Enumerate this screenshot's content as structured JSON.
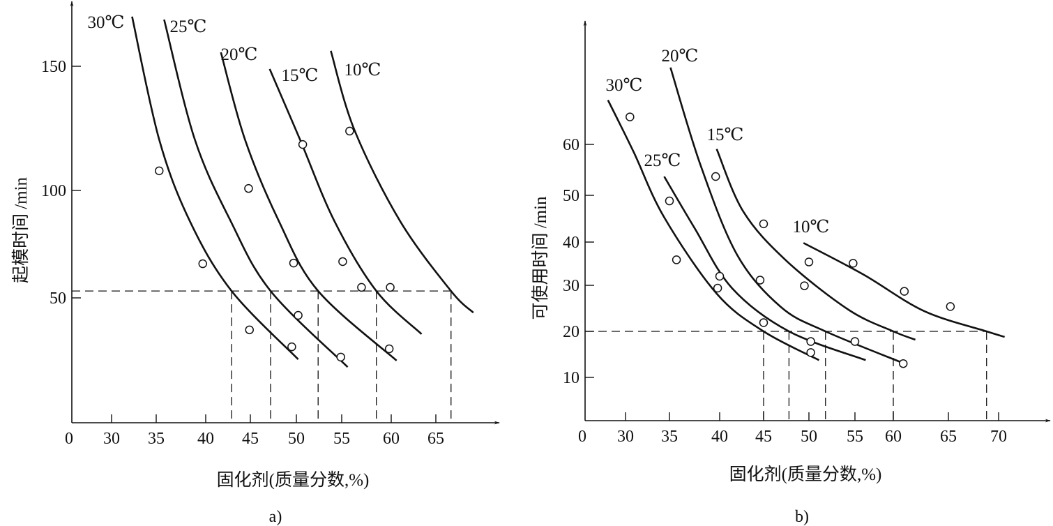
{
  "chart_data": [
    {
      "type": "line",
      "caption": "a)",
      "title": "",
      "xlabel": "固化剂(质量分数,%)",
      "ylabel": "起模时间 /min",
      "x_ticks": [
        "0",
        "30",
        "35",
        "40",
        "45",
        "50",
        "55",
        "60",
        "65"
      ],
      "y_ticks": [
        "50",
        "100",
        "150"
      ],
      "grid": false,
      "series": [
        {
          "name": "30℃",
          "points": [
            [
              32.3,
              170
            ],
            [
              35.3,
              120.5
            ],
            [
              38.4,
              85.7
            ],
            [
              42.9,
              53.2
            ],
            [
              50.2,
              25.4
            ]
          ]
        },
        {
          "name": "25℃",
          "points": [
            [
              35.8,
              168.8
            ],
            [
              38.9,
              120.5
            ],
            [
              42.8,
              85.7
            ],
            [
              47.2,
              53.2
            ],
            [
              55.6,
              22.3
            ]
          ]
        },
        {
          "name": "20℃",
          "points": [
            [
              41.7,
              155.6
            ],
            [
              44.4,
              120.5
            ],
            [
              48.1,
              85.7
            ],
            [
              52.4,
              53.2
            ],
            [
              60.6,
              24.9
            ]
          ]
        },
        {
          "name": "15℃",
          "points": [
            [
              47.1,
              148.9
            ],
            [
              50.4,
              120.5
            ],
            [
              54.2,
              85.7
            ],
            [
              58.5,
              53.2
            ],
            [
              63.4,
              35.5
            ]
          ]
        },
        {
          "name": "10℃",
          "points": [
            [
              53.8,
              156.2
            ],
            [
              56.3,
              124.2
            ],
            [
              61.0,
              85.7
            ],
            [
              66.7,
              53.2
            ],
            [
              69.2,
              44.1
            ]
          ]
        }
      ],
      "scatter": [
        [
          35.3,
          107.9
        ],
        [
          39.7,
          65.9
        ],
        [
          44.8,
          100.8
        ],
        [
          44.9,
          37.2
        ],
        [
          49.7,
          66.2
        ],
        [
          50.2,
          43
        ],
        [
          49.5,
          30.4
        ],
        [
          50.7,
          118.5
        ],
        [
          54.9,
          26.3
        ],
        [
          55.1,
          66.9
        ],
        [
          55.8,
          123.9
        ],
        [
          57.0,
          54.9
        ],
        [
          59.9,
          54.9
        ],
        [
          59.8,
          29.6
        ]
      ],
      "reference": {
        "y": 53.2,
        "x": [
          42.9,
          47.2,
          52.4,
          58.5,
          66.7
        ]
      }
    },
    {
      "type": "line",
      "caption": "b)",
      "title": "",
      "xlabel": "固化剂(质量分数,%)",
      "ylabel": "可使用时间 /min",
      "x_ticks": [
        "0",
        "30",
        "35",
        "40",
        "45",
        "50",
        "55",
        "60",
        "65",
        "70"
      ],
      "y_ticks": [
        "10",
        "20",
        "30",
        "40",
        "50",
        "60"
      ],
      "grid": false,
      "series": [
        {
          "name": "30℃",
          "points": [
            [
              28.0,
              68.7
            ],
            [
              30.9,
              58.6
            ],
            [
              34.4,
              45.3
            ],
            [
              39.7,
              28.2
            ],
            [
              45.0,
              20
            ],
            [
              51.1,
              13.75
            ]
          ]
        },
        {
          "name": "25℃",
          "points": [
            [
              34.4,
              53.7
            ],
            [
              37.5,
              43
            ],
            [
              41.4,
              29.4
            ],
            [
              47.8,
              20
            ],
            [
              56.4,
              13.75
            ]
          ]
        },
        {
          "name": "20℃",
          "points": [
            [
              35.1,
              75.1
            ],
            [
              38.1,
              55.9
            ],
            [
              42.0,
              37.0
            ],
            [
              46.9,
              25.3
            ],
            [
              51.8,
              20
            ],
            [
              60.8,
              13.2
            ]
          ]
        },
        {
          "name": "15℃",
          "points": [
            [
              39.7,
              59.1
            ],
            [
              42.7,
              46.5
            ],
            [
              47.5,
              35.7
            ],
            [
              54.3,
              24.7
            ],
            [
              60.0,
              20
            ],
            [
              62.0,
              18.2
            ]
          ]
        },
        {
          "name": "10℃",
          "points": [
            [
              49.4,
              39.8
            ],
            [
              56.1,
              32.5
            ],
            [
              62.8,
              24.4
            ],
            [
              68.8,
              20
            ],
            [
              70.6,
              18.8
            ]
          ]
        }
      ],
      "scatter": [
        [
          30.5,
          65.4
        ],
        [
          35.0,
          48.8
        ],
        [
          35.7,
          35.9
        ],
        [
          39.6,
          53.7
        ],
        [
          40.0,
          32.1
        ],
        [
          39.8,
          29.4
        ],
        [
          45.0,
          43.9
        ],
        [
          44.6,
          31.2
        ],
        [
          45.0,
          21.9
        ],
        [
          50.0,
          35.4
        ],
        [
          49.5,
          29.9
        ],
        [
          50.2,
          17.8
        ],
        [
          50.2,
          15.4
        ],
        [
          54.8,
          35.1
        ],
        [
          55.0,
          17.8
        ],
        [
          60.9,
          13.0
        ],
        [
          61.0,
          28.7
        ],
        [
          65.2,
          25.4
        ]
      ],
      "reference": {
        "y": 20,
        "x": [
          45.0,
          47.8,
          51.8,
          60.0,
          68.8
        ]
      }
    }
  ]
}
